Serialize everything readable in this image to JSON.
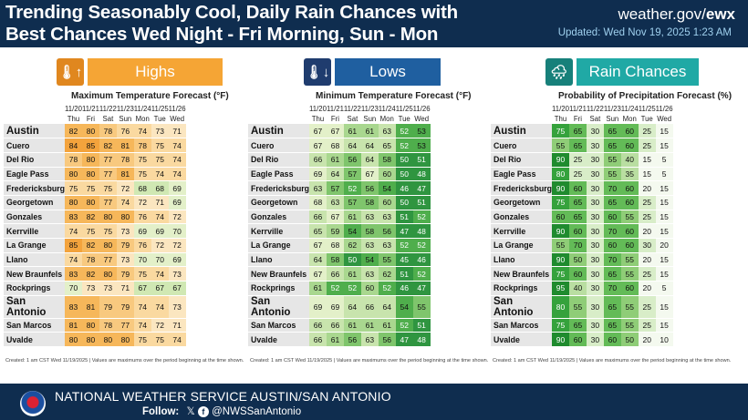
{
  "header": {
    "title_line1": "Trending Seasonably Cool, Daily Rain Chances with",
    "title_line2": "Best Chances Wed Night - Fri Morning, Sun - Mon",
    "site_prefix": "weather.gov/",
    "site_suffix": "ewx",
    "updated": "Updated: Wed Nov 19, 2025 1:23 AM"
  },
  "dates": [
    "11/20",
    "11/21",
    "11/22",
    "11/23",
    "11/24",
    "11/25",
    "11/26"
  ],
  "days": [
    "Thu",
    "Fri",
    "Sat",
    "Sun",
    "Mon",
    "Tue",
    "Wed"
  ],
  "cities": [
    "Austin",
    "Cuero",
    "Del Rio",
    "Eagle Pass",
    "Fredericksburg",
    "Georgetown",
    "Gonzales",
    "Kerrville",
    "La Grange",
    "Llano",
    "New Braunfels",
    "Rockprings",
    "San Antonio",
    "San Marcos",
    "Uvalde"
  ],
  "big_cities": [
    "Austin",
    "San Antonio"
  ],
  "panels": [
    {
      "key": "highs",
      "icon_name": "thermometer-up-icon",
      "icon": "🌡↑",
      "label": "Highs",
      "subtitle": "Maximum Temperature Forecast (°F)",
      "color_icon": "#e0871f",
      "color_label": "#f5a535",
      "values": [
        [
          82,
          80,
          78,
          76,
          74,
          73,
          71
        ],
        [
          84,
          85,
          82,
          81,
          78,
          75,
          74
        ],
        [
          78,
          80,
          77,
          78,
          75,
          75,
          74
        ],
        [
          80,
          80,
          77,
          81,
          75,
          74,
          74
        ],
        [
          75,
          75,
          75,
          72,
          68,
          68,
          69
        ],
        [
          80,
          80,
          77,
          74,
          72,
          71,
          69
        ],
        [
          83,
          82,
          80,
          80,
          76,
          74,
          72
        ],
        [
          74,
          75,
          75,
          73,
          69,
          69,
          70
        ],
        [
          85,
          82,
          80,
          79,
          76,
          72,
          72
        ],
        [
          74,
          78,
          77,
          73,
          70,
          70,
          69
        ],
        [
          83,
          82,
          80,
          79,
          75,
          74,
          73
        ],
        [
          70,
          73,
          73,
          71,
          67,
          67,
          67
        ],
        [
          83,
          81,
          79,
          79,
          74,
          74,
          73
        ],
        [
          81,
          80,
          78,
          77,
          74,
          72,
          71
        ],
        [
          80,
          80,
          80,
          80,
          75,
          75,
          74
        ]
      ]
    },
    {
      "key": "lows",
      "icon_name": "thermometer-down-icon",
      "icon": "🌡↓",
      "label": "Lows",
      "subtitle": "Minimum Temperature Forecast (°F)",
      "color_icon": "#1f3c6e",
      "color_label": "#1f5fa0",
      "values": [
        [
          67,
          67,
          61,
          61,
          63,
          52,
          53
        ],
        [
          67,
          68,
          64,
          64,
          65,
          52,
          53
        ],
        [
          66,
          61,
          56,
          64,
          58,
          50,
          51
        ],
        [
          69,
          64,
          57,
          67,
          60,
          50,
          48
        ],
        [
          63,
          57,
          52,
          56,
          54,
          46,
          47
        ],
        [
          68,
          63,
          57,
          58,
          60,
          50,
          51
        ],
        [
          66,
          67,
          61,
          63,
          63,
          51,
          52
        ],
        [
          65,
          59,
          54,
          58,
          56,
          47,
          48
        ],
        [
          67,
          68,
          62,
          63,
          63,
          52,
          52
        ],
        [
          64,
          58,
          50,
          54,
          55,
          45,
          46
        ],
        [
          67,
          66,
          61,
          63,
          62,
          51,
          52
        ],
        [
          61,
          52,
          52,
          60,
          52,
          46,
          47
        ],
        [
          69,
          69,
          64,
          66,
          64,
          54,
          55
        ],
        [
          66,
          66,
          61,
          61,
          61,
          52,
          51
        ],
        [
          66,
          61,
          56,
          63,
          56,
          47,
          48
        ]
      ]
    },
    {
      "key": "rain",
      "icon_name": "rain-cloud-icon",
      "icon": "🌧",
      "label": "Rain Chances",
      "subtitle": "Probability of Precipitation Forecast (%)",
      "color_icon": "#17807a",
      "color_label": "#20a9a5",
      "values": [
        [
          75,
          65,
          30,
          65,
          60,
          25,
          15
        ],
        [
          55,
          65,
          30,
          65,
          60,
          25,
          15
        ],
        [
          90,
          25,
          30,
          55,
          40,
          15,
          5
        ],
        [
          80,
          25,
          30,
          55,
          35,
          15,
          5
        ],
        [
          90,
          60,
          30,
          70,
          60,
          20,
          15
        ],
        [
          75,
          65,
          30,
          65,
          60,
          25,
          15
        ],
        [
          60,
          65,
          30,
          60,
          55,
          25,
          15
        ],
        [
          90,
          60,
          30,
          70,
          60,
          20,
          15
        ],
        [
          55,
          70,
          30,
          60,
          60,
          30,
          20
        ],
        [
          90,
          50,
          30,
          70,
          55,
          20,
          15
        ],
        [
          75,
          60,
          30,
          65,
          55,
          25,
          15
        ],
        [
          95,
          40,
          30,
          70,
          60,
          20,
          5
        ],
        [
          80,
          55,
          30,
          65,
          55,
          25,
          15
        ],
        [
          75,
          65,
          30,
          65,
          55,
          25,
          15
        ],
        [
          90,
          60,
          30,
          60,
          50,
          20,
          10
        ]
      ]
    }
  ],
  "note": "Created: 1 am CST Wed 11/19/2025  |  Values are maximums over the period beginning at the time shown.",
  "footer": {
    "office": "NATIONAL WEATHER SERVICE AUSTIN/SAN ANTONIO",
    "follow_label": "Follow:",
    "handle": "@NWSSanAntonio"
  }
}
